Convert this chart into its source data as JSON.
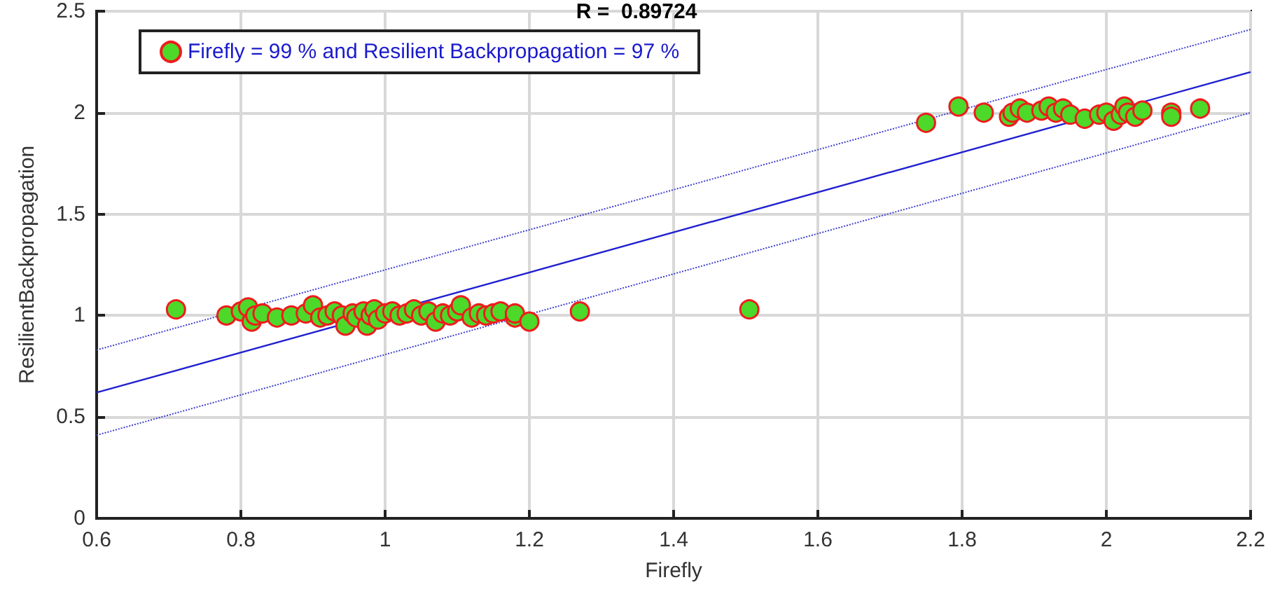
{
  "chart_data": {
    "type": "scatter",
    "title": "R =  0.89724",
    "xlabel": "Firefly",
    "ylabel": "ResilientBackpropagation",
    "xlim": [
      0.6,
      2.2
    ],
    "xticks": [
      0.6,
      0.8,
      1,
      1.2,
      1.4,
      1.6,
      1.8,
      2,
      2.2
    ],
    "ylim": [
      0,
      2.5
    ],
    "yticks": [
      0,
      0.5,
      1,
      1.5,
      2,
      2.5
    ],
    "grid": true,
    "legend": "top left",
    "marker": "circle",
    "series": [
      {
        "name": "Firefly = 99 % and Resilient Backpropagation = 97 %",
        "color": "#4cd92a",
        "x": [
          0.71,
          0.78,
          0.8,
          0.81,
          0.815,
          0.82,
          0.83,
          0.85,
          0.87,
          0.89,
          0.9,
          0.91,
          0.92,
          0.93,
          0.94,
          0.945,
          0.955,
          0.96,
          0.97,
          0.975,
          0.98,
          0.985,
          0.99,
          1.0,
          1.01,
          1.02,
          1.03,
          1.04,
          1.05,
          1.06,
          1.07,
          1.08,
          1.09,
          1.1,
          1.105,
          1.12,
          1.13,
          1.14,
          1.15,
          1.16,
          1.18,
          1.18,
          1.2,
          1.27,
          1.505,
          1.75,
          1.795,
          1.83,
          1.865,
          1.87,
          1.88,
          1.89,
          1.91,
          1.92,
          1.93,
          1.94,
          1.95,
          1.97,
          1.99,
          2.0,
          2.01,
          2.02,
          2.025,
          2.03,
          2.04,
          2.05,
          2.09,
          2.09,
          2.13
        ],
        "values": [
          1.03,
          1.0,
          1.02,
          1.04,
          0.97,
          1.0,
          1.01,
          0.99,
          1.0,
          1.01,
          1.05,
          0.99,
          1.0,
          1.02,
          1.0,
          0.95,
          1.01,
          0.99,
          1.02,
          0.95,
          1.0,
          1.03,
          0.98,
          1.01,
          1.02,
          1.0,
          1.01,
          1.03,
          1.0,
          1.02,
          0.97,
          1.01,
          1.0,
          1.02,
          1.05,
          0.99,
          1.01,
          1.0,
          1.01,
          1.02,
          0.99,
          1.01,
          0.97,
          1.02,
          1.03,
          1.95,
          2.03,
          2.0,
          1.98,
          2.0,
          2.02,
          2.0,
          2.01,
          2.03,
          2.0,
          2.02,
          1.99,
          1.97,
          1.99,
          2.0,
          1.96,
          1.99,
          2.03,
          2.0,
          1.98,
          2.01,
          2.0,
          1.98,
          2.02
        ]
      },
      {
        "type": "line",
        "color": "#2020d0",
        "line_style": "solid",
        "marker": "none",
        "x": [
          0.6,
          2.2
        ],
        "values": [
          0.62,
          2.2
        ]
      },
      {
        "type": "line",
        "color": "#4040d0",
        "line_style": "dotted",
        "marker": "none",
        "x": [
          0.6,
          2.2
        ],
        "values": [
          0.83,
          2.41
        ]
      },
      {
        "type": "line",
        "color": "#4040d0",
        "line_style": "dotted",
        "marker": "none",
        "x": [
          0.6,
          2.2
        ],
        "values": [
          0.41,
          2.0
        ]
      }
    ]
  }
}
